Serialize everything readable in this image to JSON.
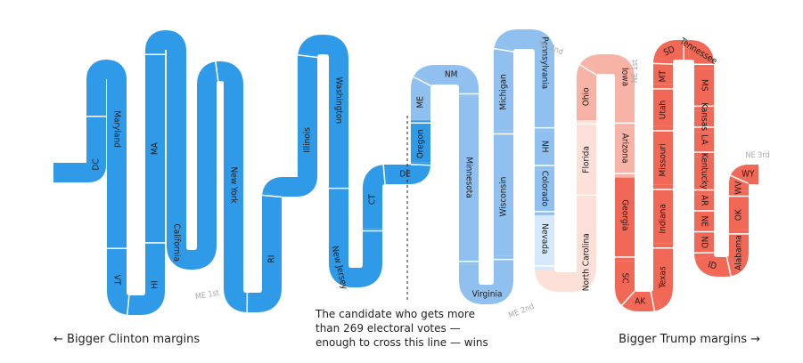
{
  "colors": {
    "safe_dem": "#2f9ae8",
    "likely_dem": "#8fc0f0",
    "lean_dem": "#d6e8fb",
    "lean_rep": "#fde1d9",
    "likely_rep": "#f7b3a6",
    "safe_rep": "#f26857",
    "threshold": "#222222"
  },
  "states": [
    {
      "label": "DC",
      "tone": "safe_dem"
    },
    {
      "label": "Maryland",
      "tone": "safe_dem"
    },
    {
      "label": "VT",
      "tone": "safe_dem"
    },
    {
      "label": "HI",
      "tone": "safe_dem"
    },
    {
      "label": "MA",
      "tone": "safe_dem"
    },
    {
      "label": "California",
      "tone": "safe_dem"
    },
    {
      "label": "New York",
      "tone": "safe_dem"
    },
    {
      "label": "RI",
      "tone": "safe_dem"
    },
    {
      "label": "Illinois",
      "tone": "safe_dem"
    },
    {
      "label": "Washington",
      "tone": "safe_dem"
    },
    {
      "label": "New Jersey",
      "tone": "safe_dem"
    },
    {
      "label": "CT",
      "tone": "safe_dem"
    },
    {
      "label": "DE",
      "tone": "safe_dem"
    },
    {
      "label": "Oregon",
      "tone": "safe_dem"
    },
    {
      "label": "ME",
      "tone": "likely_dem"
    },
    {
      "label": "NM",
      "tone": "likely_dem"
    },
    {
      "label": "Minnesota",
      "tone": "likely_dem"
    },
    {
      "label": "Virginia",
      "tone": "likely_dem"
    },
    {
      "label": "Wisconsin",
      "tone": "likely_dem"
    },
    {
      "label": "Michigan",
      "tone": "likely_dem"
    },
    {
      "label": "Pennsylvania",
      "tone": "likely_dem"
    },
    {
      "label": "NH",
      "tone": "likely_dem"
    },
    {
      "label": "Colorado",
      "tone": "likely_dem"
    },
    {
      "label": "Nevada",
      "tone": "lean_dem"
    },
    {
      "label": "North Carolina",
      "tone": "lean_rep"
    },
    {
      "label": "Florida",
      "tone": "lean_rep"
    },
    {
      "label": "Ohio",
      "tone": "likely_rep"
    },
    {
      "label": "Iowa",
      "tone": "likely_rep"
    },
    {
      "label": "Arizona",
      "tone": "likely_rep"
    },
    {
      "label": "Georgia",
      "tone": "safe_rep"
    },
    {
      "label": "SC",
      "tone": "safe_rep"
    },
    {
      "label": "AK",
      "tone": "safe_rep"
    },
    {
      "label": "Texas",
      "tone": "safe_rep"
    },
    {
      "label": "Indiana",
      "tone": "safe_rep"
    },
    {
      "label": "Missouri",
      "tone": "safe_rep"
    },
    {
      "label": "Utah",
      "tone": "safe_rep"
    },
    {
      "label": "MT",
      "tone": "safe_rep"
    },
    {
      "label": "SD",
      "tone": "safe_rep"
    },
    {
      "label": "Tennessee",
      "tone": "safe_rep"
    },
    {
      "label": "MS",
      "tone": "safe_rep"
    },
    {
      "label": "Kansas",
      "tone": "safe_rep"
    },
    {
      "label": "LA",
      "tone": "safe_rep"
    },
    {
      "label": "Kentucky",
      "tone": "safe_rep"
    },
    {
      "label": "AR",
      "tone": "safe_rep"
    },
    {
      "label": "NE",
      "tone": "safe_rep"
    },
    {
      "label": "ND",
      "tone": "safe_rep"
    },
    {
      "label": "ID",
      "tone": "safe_rep"
    },
    {
      "label": "Alabama",
      "tone": "safe_rep"
    },
    {
      "label": "OK",
      "tone": "safe_rep"
    },
    {
      "label": "WV",
      "tone": "safe_rep"
    },
    {
      "label": "WY",
      "tone": "safe_rep"
    }
  ],
  "notes": [
    "ME 1st",
    "ME 2nd",
    "NE 2nd",
    "NE 1st",
    "NE 3rd"
  ],
  "threshold_note": "The candidate who gets more than 269 electoral votes — enough to cross this line — wins",
  "left_axis_label": "← Bigger Clinton margins",
  "right_axis_label": "Bigger Trump margins →"
}
